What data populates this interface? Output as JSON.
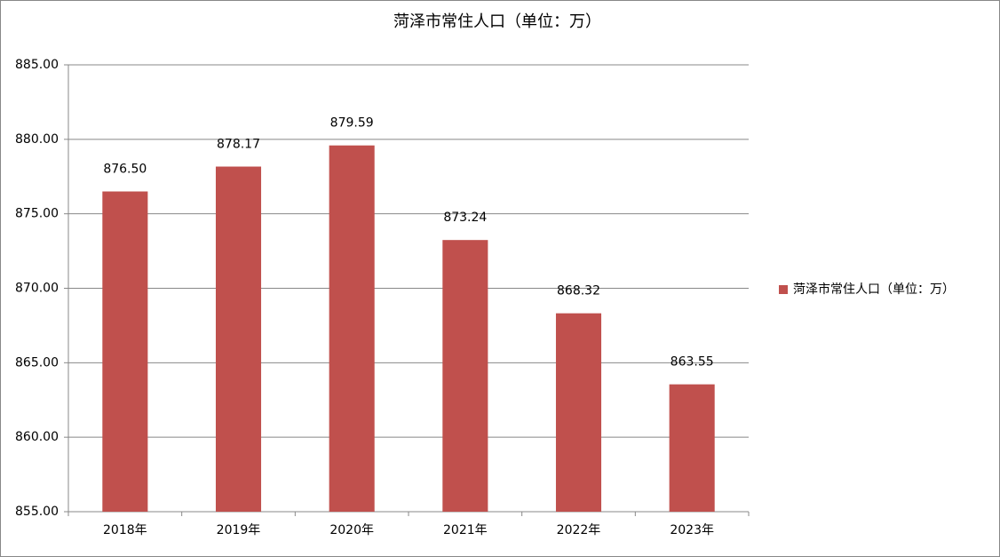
{
  "chart_data": {
    "type": "bar",
    "title": "菏泽市常住人口（单位：万）",
    "categories": [
      "2018年",
      "2019年",
      "2020年",
      "2021年",
      "2022年",
      "2023年"
    ],
    "series": [
      {
        "name": "菏泽市常住人口（单位：万）",
        "color": "#c0504d",
        "values": [
          876.5,
          878.17,
          879.59,
          873.24,
          868.32,
          863.55
        ],
        "value_labels": [
          "876.50",
          "878.17",
          "879.59",
          "873.24",
          "868.32",
          "863.55"
        ]
      }
    ],
    "ylim": [
      855,
      885
    ],
    "yticks": [
      {
        "value": 855,
        "label": "855.00"
      },
      {
        "value": 860,
        "label": "860.00"
      },
      {
        "value": 865,
        "label": "865.00"
      },
      {
        "value": 870,
        "label": "870.00"
      },
      {
        "value": 875,
        "label": "875.00"
      },
      {
        "value": 880,
        "label": "880.00"
      },
      {
        "value": 885,
        "label": "885.00"
      }
    ],
    "grid": true,
    "legend": "right"
  }
}
